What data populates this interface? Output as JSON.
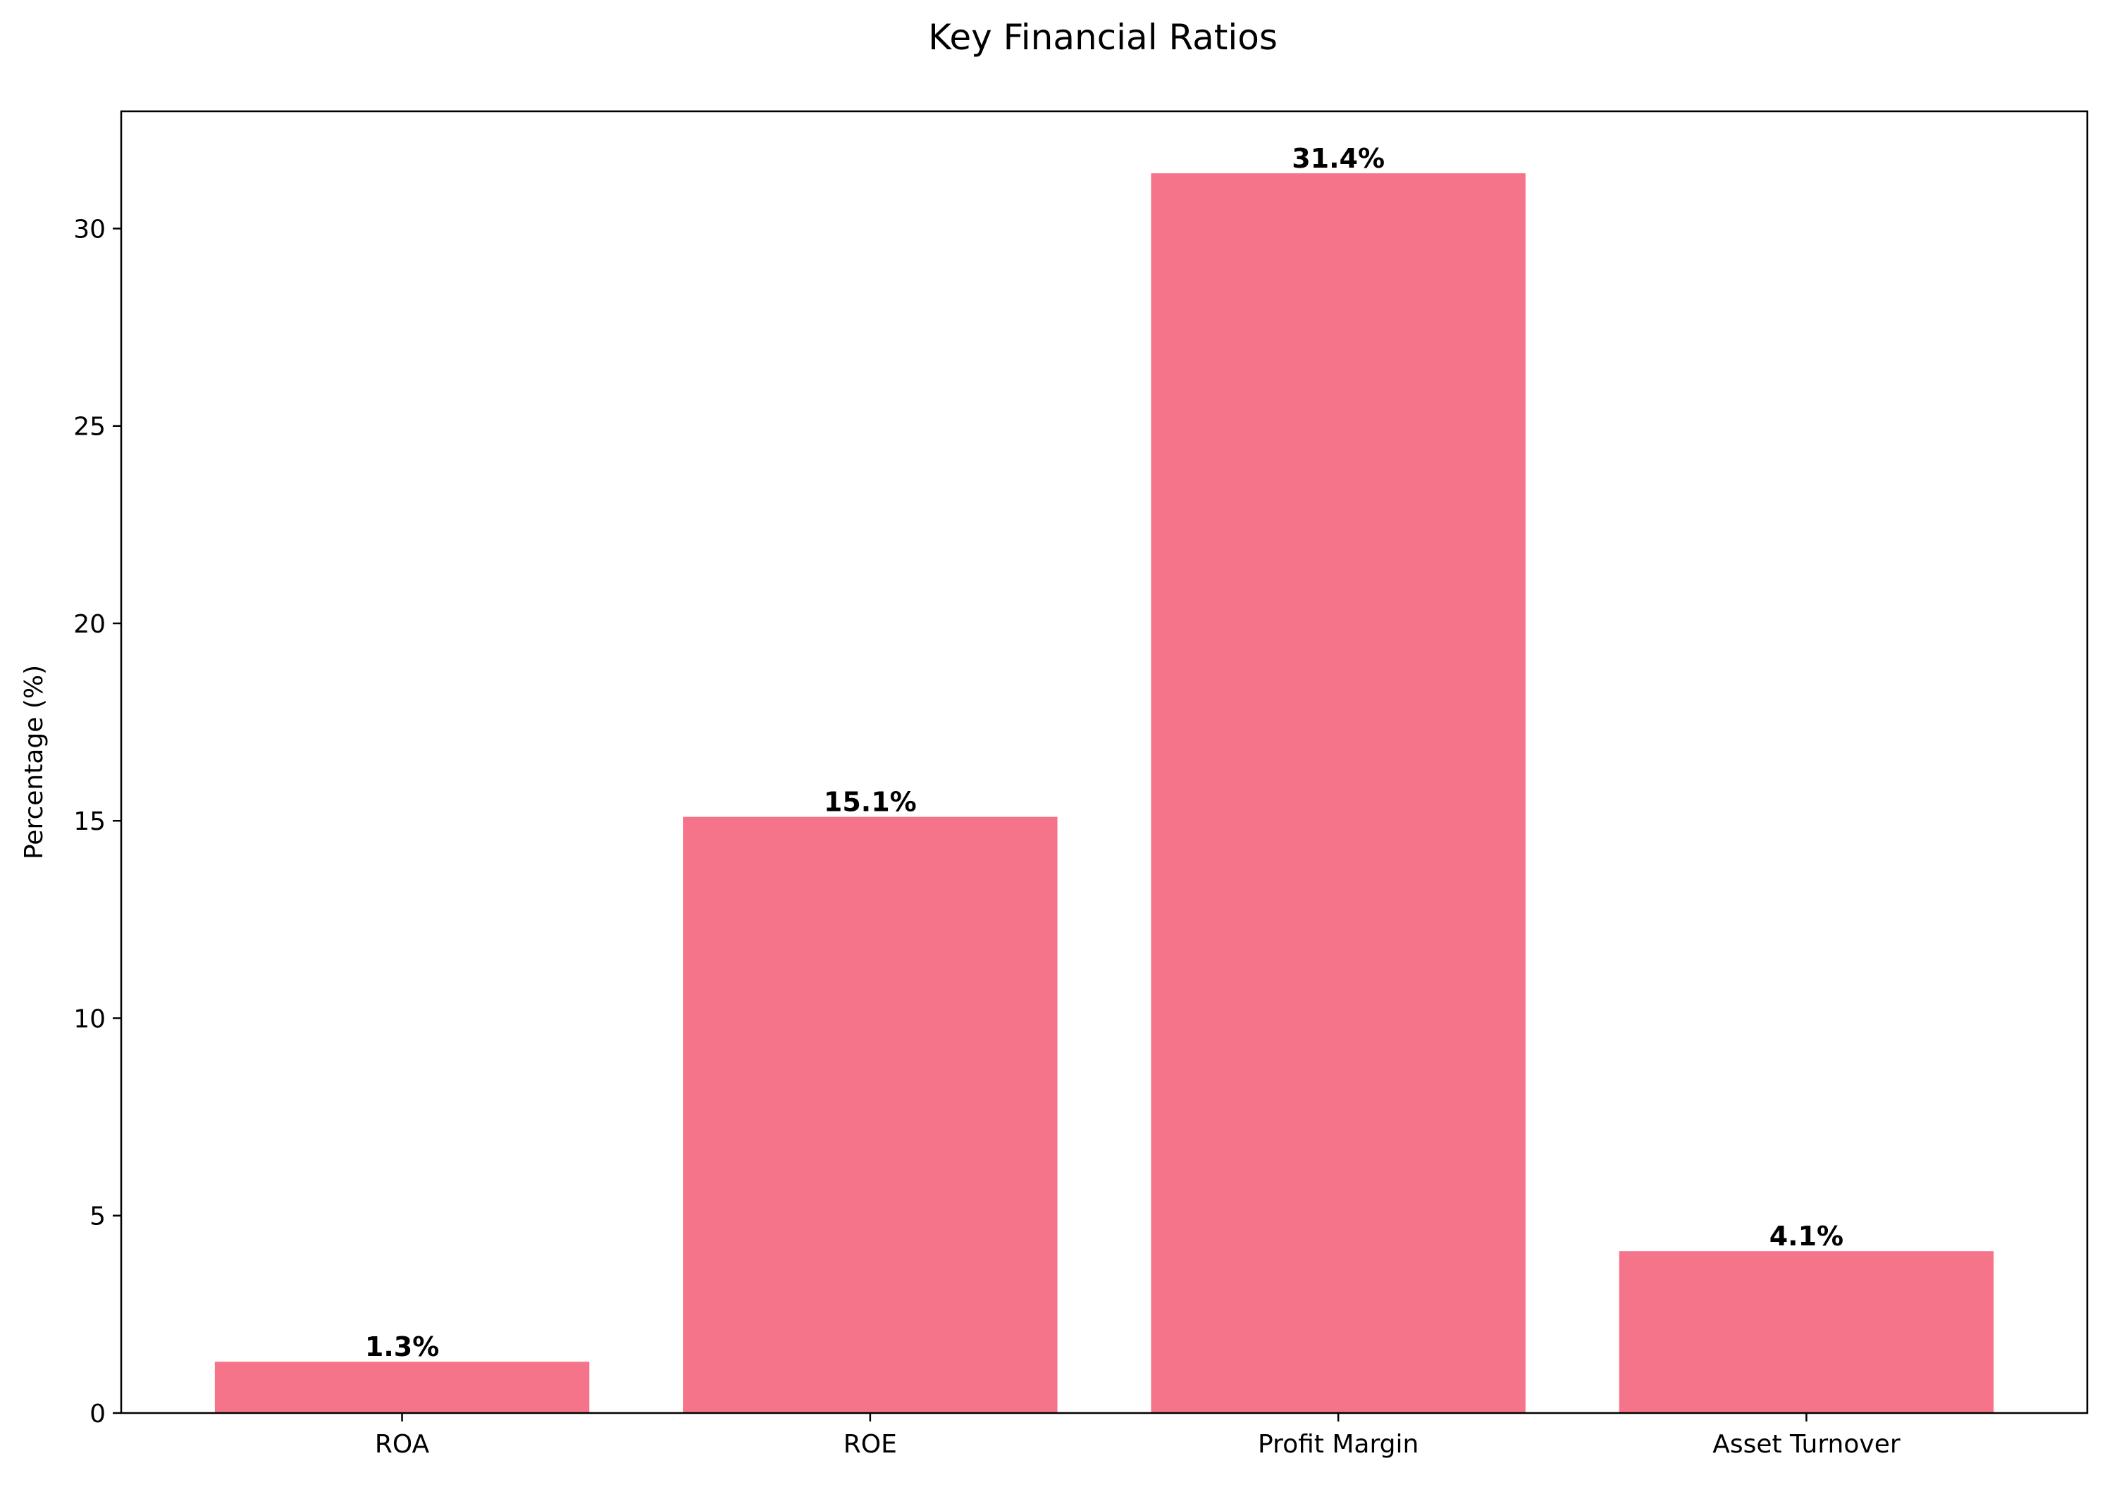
{
  "chart_data": {
    "type": "bar",
    "title": "Key Financial Ratios",
    "xlabel": "",
    "ylabel": "Percentage (%)",
    "categories": [
      "ROA",
      "ROE",
      "Profit Margin",
      "Asset Turnover"
    ],
    "values": [
      1.3,
      15.1,
      31.4,
      4.1
    ],
    "value_labels": [
      "1.3%",
      "15.1%",
      "31.4%",
      "4.1%"
    ],
    "ylim": [
      0,
      32.97
    ],
    "yticks": [
      0,
      5,
      10,
      15,
      20,
      25,
      30
    ],
    "grid": false,
    "legend": "none",
    "bar_color": "#f67489",
    "axis_color": "#000000",
    "text_color": "#000000"
  }
}
